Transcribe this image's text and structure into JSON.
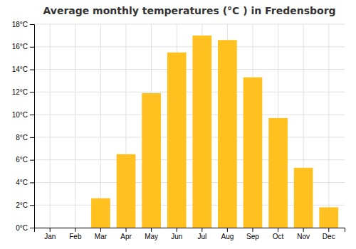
{
  "chart_data": {
    "type": "bar",
    "title": "Average monthly temperatures (°C ) in Fredensborg",
    "categories": [
      "Jan",
      "Feb",
      "Mar",
      "Apr",
      "May",
      "Jun",
      "Jul",
      "Aug",
      "Sep",
      "Oct",
      "Nov",
      "Dec"
    ],
    "values": [
      0.0,
      0.0,
      2.6,
      6.5,
      11.9,
      15.5,
      17.0,
      16.6,
      13.3,
      9.7,
      5.3,
      1.8
    ],
    "color": "#FFC020",
    "ylim": [
      0,
      18
    ],
    "yticks": [
      {
        "value": 0,
        "label": "0°C"
      },
      {
        "value": 2,
        "label": "2°C"
      },
      {
        "value": 4,
        "label": "4°C"
      },
      {
        "value": 6,
        "label": "6°C"
      },
      {
        "value": 8,
        "label": "8°C"
      },
      {
        "value": 10,
        "label": "10°C"
      },
      {
        "value": 12,
        "label": "12°C"
      },
      {
        "value": 14,
        "label": "14°C"
      },
      {
        "value": 16,
        "label": "16°C"
      },
      {
        "value": 18,
        "label": "18°C"
      }
    ],
    "grid": true
  }
}
